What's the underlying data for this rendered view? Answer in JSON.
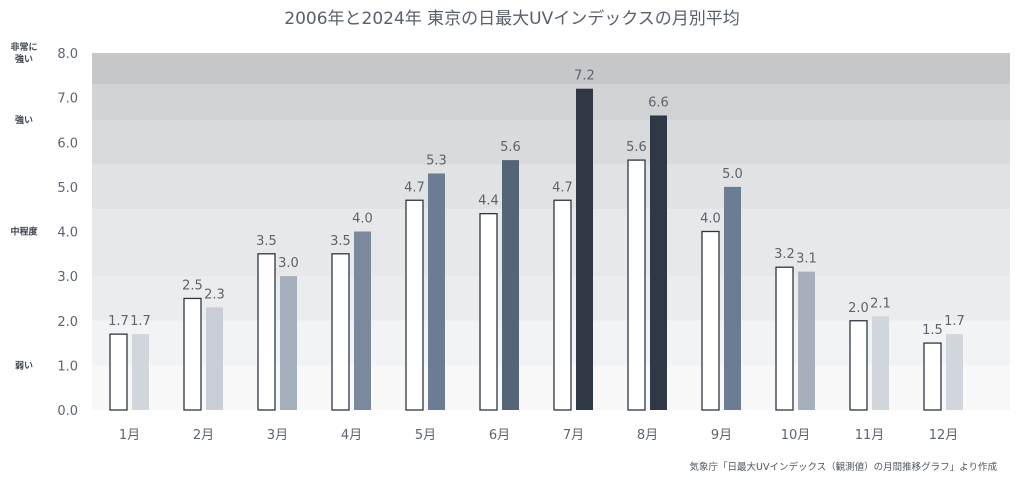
{
  "chart_data": {
    "type": "bar",
    "title": "2006年と2024年 東京の日最大UVインデックスの月別平均",
    "categories": [
      "1月",
      "2月",
      "3月",
      "4月",
      "5月",
      "6月",
      "7月",
      "8月",
      "9月",
      "10月",
      "11月",
      "12月"
    ],
    "series": [
      {
        "values": [
          1.7,
          2.5,
          3.5,
          3.5,
          4.7,
          4.4,
          4.7,
          5.6,
          4.0,
          3.2,
          2.0,
          1.5
        ]
      },
      {
        "values": [
          1.7,
          2.3,
          3.0,
          4.0,
          5.3,
          5.6,
          7.2,
          6.6,
          5.0,
          3.1,
          2.1,
          1.7
        ]
      }
    ],
    "ylim": [
      0,
      8
    ],
    "yticks": [
      "0.0",
      "1.0",
      "2.0",
      "3.0",
      "4.0",
      "5.0",
      "6.0",
      "7.0",
      "8.0"
    ],
    "uv_levels": [
      {
        "label_lines": [
          "弱い"
        ],
        "value": 1.0
      },
      {
        "label_lines": [
          "中程度"
        ],
        "value": 4.0
      },
      {
        "label_lines": [
          "強い"
        ],
        "value": 6.5
      },
      {
        "label_lines": [
          "非常に",
          "強い"
        ],
        "value": 8.0
      }
    ],
    "bands": [
      {
        "from": 0,
        "to": 1.0,
        "color": "#f8f8f9"
      },
      {
        "from": 1.0,
        "to": 2.0,
        "color": "#f2f3f4"
      },
      {
        "from": 2.0,
        "to": 3.0,
        "color": "#ebecee"
      },
      {
        "from": 3.0,
        "to": 4.5,
        "color": "#e7e8ea"
      },
      {
        "from": 4.5,
        "to": 5.5,
        "color": "#e1e2e4"
      },
      {
        "from": 5.5,
        "to": 6.5,
        "color": "#d9dadc"
      },
      {
        "from": 6.5,
        "to": 7.3,
        "color": "#d1d2d4"
      },
      {
        "from": 7.3,
        "to": 8.0,
        "color": "#c6c7c9"
      }
    ],
    "colors": {
      "series_2006_fill": "#ffffff",
      "series_2006_stroke": "#2d3640",
      "series_2024_by_month": [
        "#d0d6dc",
        "#c7ced5",
        "#a5b0bc",
        "#7a8a9c",
        "#6b7d92",
        "#556578",
        "#2e3945",
        "#2e3945",
        "#6b7d92",
        "#a5b0bc",
        "#d0d6dc",
        "#d0d6dc"
      ],
      "text": "#5b6470"
    },
    "grid": false,
    "legend": "none",
    "source": "気象庁「日最大UVインデックス（観測値）の月間推移グラフ」より作成"
  }
}
